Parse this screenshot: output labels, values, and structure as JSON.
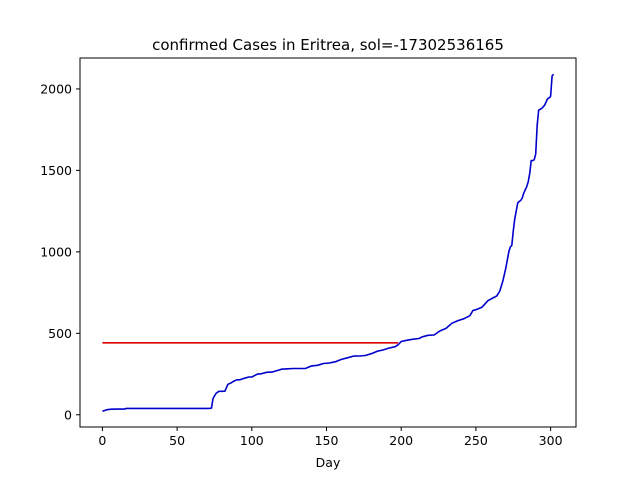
{
  "chart_data": {
    "type": "line",
    "title": "confirmed Cases in Eritrea, sol=-17302536165",
    "xlabel": "Day",
    "ylabel": "",
    "xlim": [
      -15,
      317
    ],
    "ylim": [
      -75,
      2190
    ],
    "xticks": [
      0,
      50,
      100,
      150,
      200,
      250,
      300
    ],
    "yticks": [
      0,
      500,
      1000,
      1500,
      2000
    ],
    "grid": false,
    "series": [
      {
        "color": "#0000cc",
        "x": [
          0,
          3,
          6,
          10,
          15,
          16,
          17,
          20,
          30,
          40,
          50,
          60,
          70,
          71,
          72,
          73,
          74,
          76,
          78,
          80,
          82,
          84,
          86,
          88,
          90,
          92,
          95,
          98,
          100,
          104,
          106,
          110,
          114,
          118,
          120,
          124,
          128,
          132,
          136,
          140,
          144,
          148,
          152,
          156,
          160,
          164,
          168,
          172,
          176,
          180,
          184,
          188,
          192,
          196,
          198,
          200,
          204,
          208,
          212,
          214,
          218,
          222,
          226,
          230,
          234,
          238,
          242,
          246,
          248,
          250,
          254,
          258,
          262,
          264,
          266,
          268,
          269,
          270,
          271,
          272,
          273,
          274,
          275,
          276,
          277,
          278,
          279,
          280,
          281,
          282,
          283,
          284,
          285,
          286,
          287,
          288,
          289,
          290,
          291,
          292,
          293,
          294,
          295,
          296,
          297,
          298,
          299,
          300,
          301,
          302
        ],
        "y": [
          22,
          31,
          34,
          35,
          35,
          39,
          39,
          39,
          39,
          39,
          39,
          39,
          39,
          39,
          40,
          41,
          100,
          131,
          144,
          144,
          145,
          187,
          195,
          207,
          215,
          215,
          224,
          232,
          232,
          251,
          251,
          261,
          263,
          274,
          280,
          282,
          284,
          284,
          285,
          300,
          304,
          315,
          318,
          326,
          340,
          350,
          360,
          361,
          364,
          375,
          390,
          398,
          410,
          418,
          430,
          450,
          458,
          464,
          468,
          478,
          488,
          490,
          515,
          530,
          562,
          578,
          590,
          608,
          640,
          645,
          660,
          700,
          720,
          730,
          760,
          820,
          860,
          900,
          950,
          1000,
          1030,
          1040,
          1130,
          1200,
          1250,
          1300,
          1310,
          1315,
          1330,
          1360,
          1380,
          1400,
          1430,
          1480,
          1560,
          1560,
          1565,
          1600,
          1780,
          1870,
          1875,
          1880,
          1890,
          1900,
          1920,
          1940,
          1945,
          1955,
          2080,
          2090
        ]
      },
      {
        "color": "#dd0000",
        "x": [
          0,
          198
        ],
        "y": [
          442,
          442
        ]
      }
    ]
  }
}
